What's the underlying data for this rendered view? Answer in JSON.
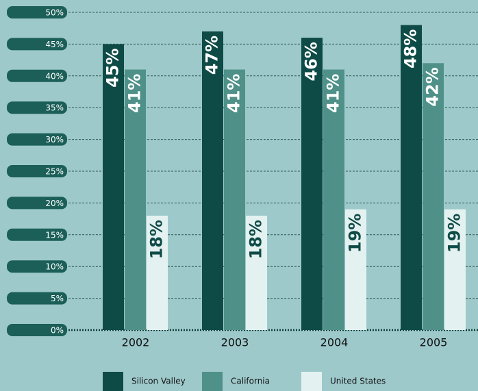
{
  "chart_data": {
    "type": "bar",
    "categories": [
      "2002",
      "2003",
      "2004",
      "2005"
    ],
    "series": [
      {
        "name": "Silicon Valley",
        "color": "#0e4b46",
        "values": [
          45,
          47,
          46,
          48
        ],
        "value_labels": [
          "45%",
          "47%",
          "46%",
          "48%"
        ]
      },
      {
        "name": "California",
        "color": "#4f9189",
        "values": [
          41,
          41,
          41,
          42
        ],
        "value_labels": [
          "41%",
          "41%",
          "41%",
          "42%"
        ]
      },
      {
        "name": "United States",
        "color": "#e4f1f1",
        "values": [
          18,
          18,
          19,
          19
        ],
        "value_labels": [
          "18%",
          "18%",
          "19%",
          "19%"
        ]
      }
    ],
    "ylim": [
      0,
      50
    ],
    "yticks": [
      {
        "value": 0,
        "label": "0%"
      },
      {
        "value": 5,
        "label": "5%"
      },
      {
        "value": 10,
        "label": "10%"
      },
      {
        "value": 15,
        "label": "15%"
      },
      {
        "value": 20,
        "label": "20%"
      },
      {
        "value": 25,
        "label": "25%"
      },
      {
        "value": 30,
        "label": "30%"
      },
      {
        "value": 35,
        "label": "35%"
      },
      {
        "value": 40,
        "label": "40%"
      },
      {
        "value": 45,
        "label": "45%"
      },
      {
        "value": 50,
        "label": "50%"
      }
    ],
    "grid": true
  }
}
